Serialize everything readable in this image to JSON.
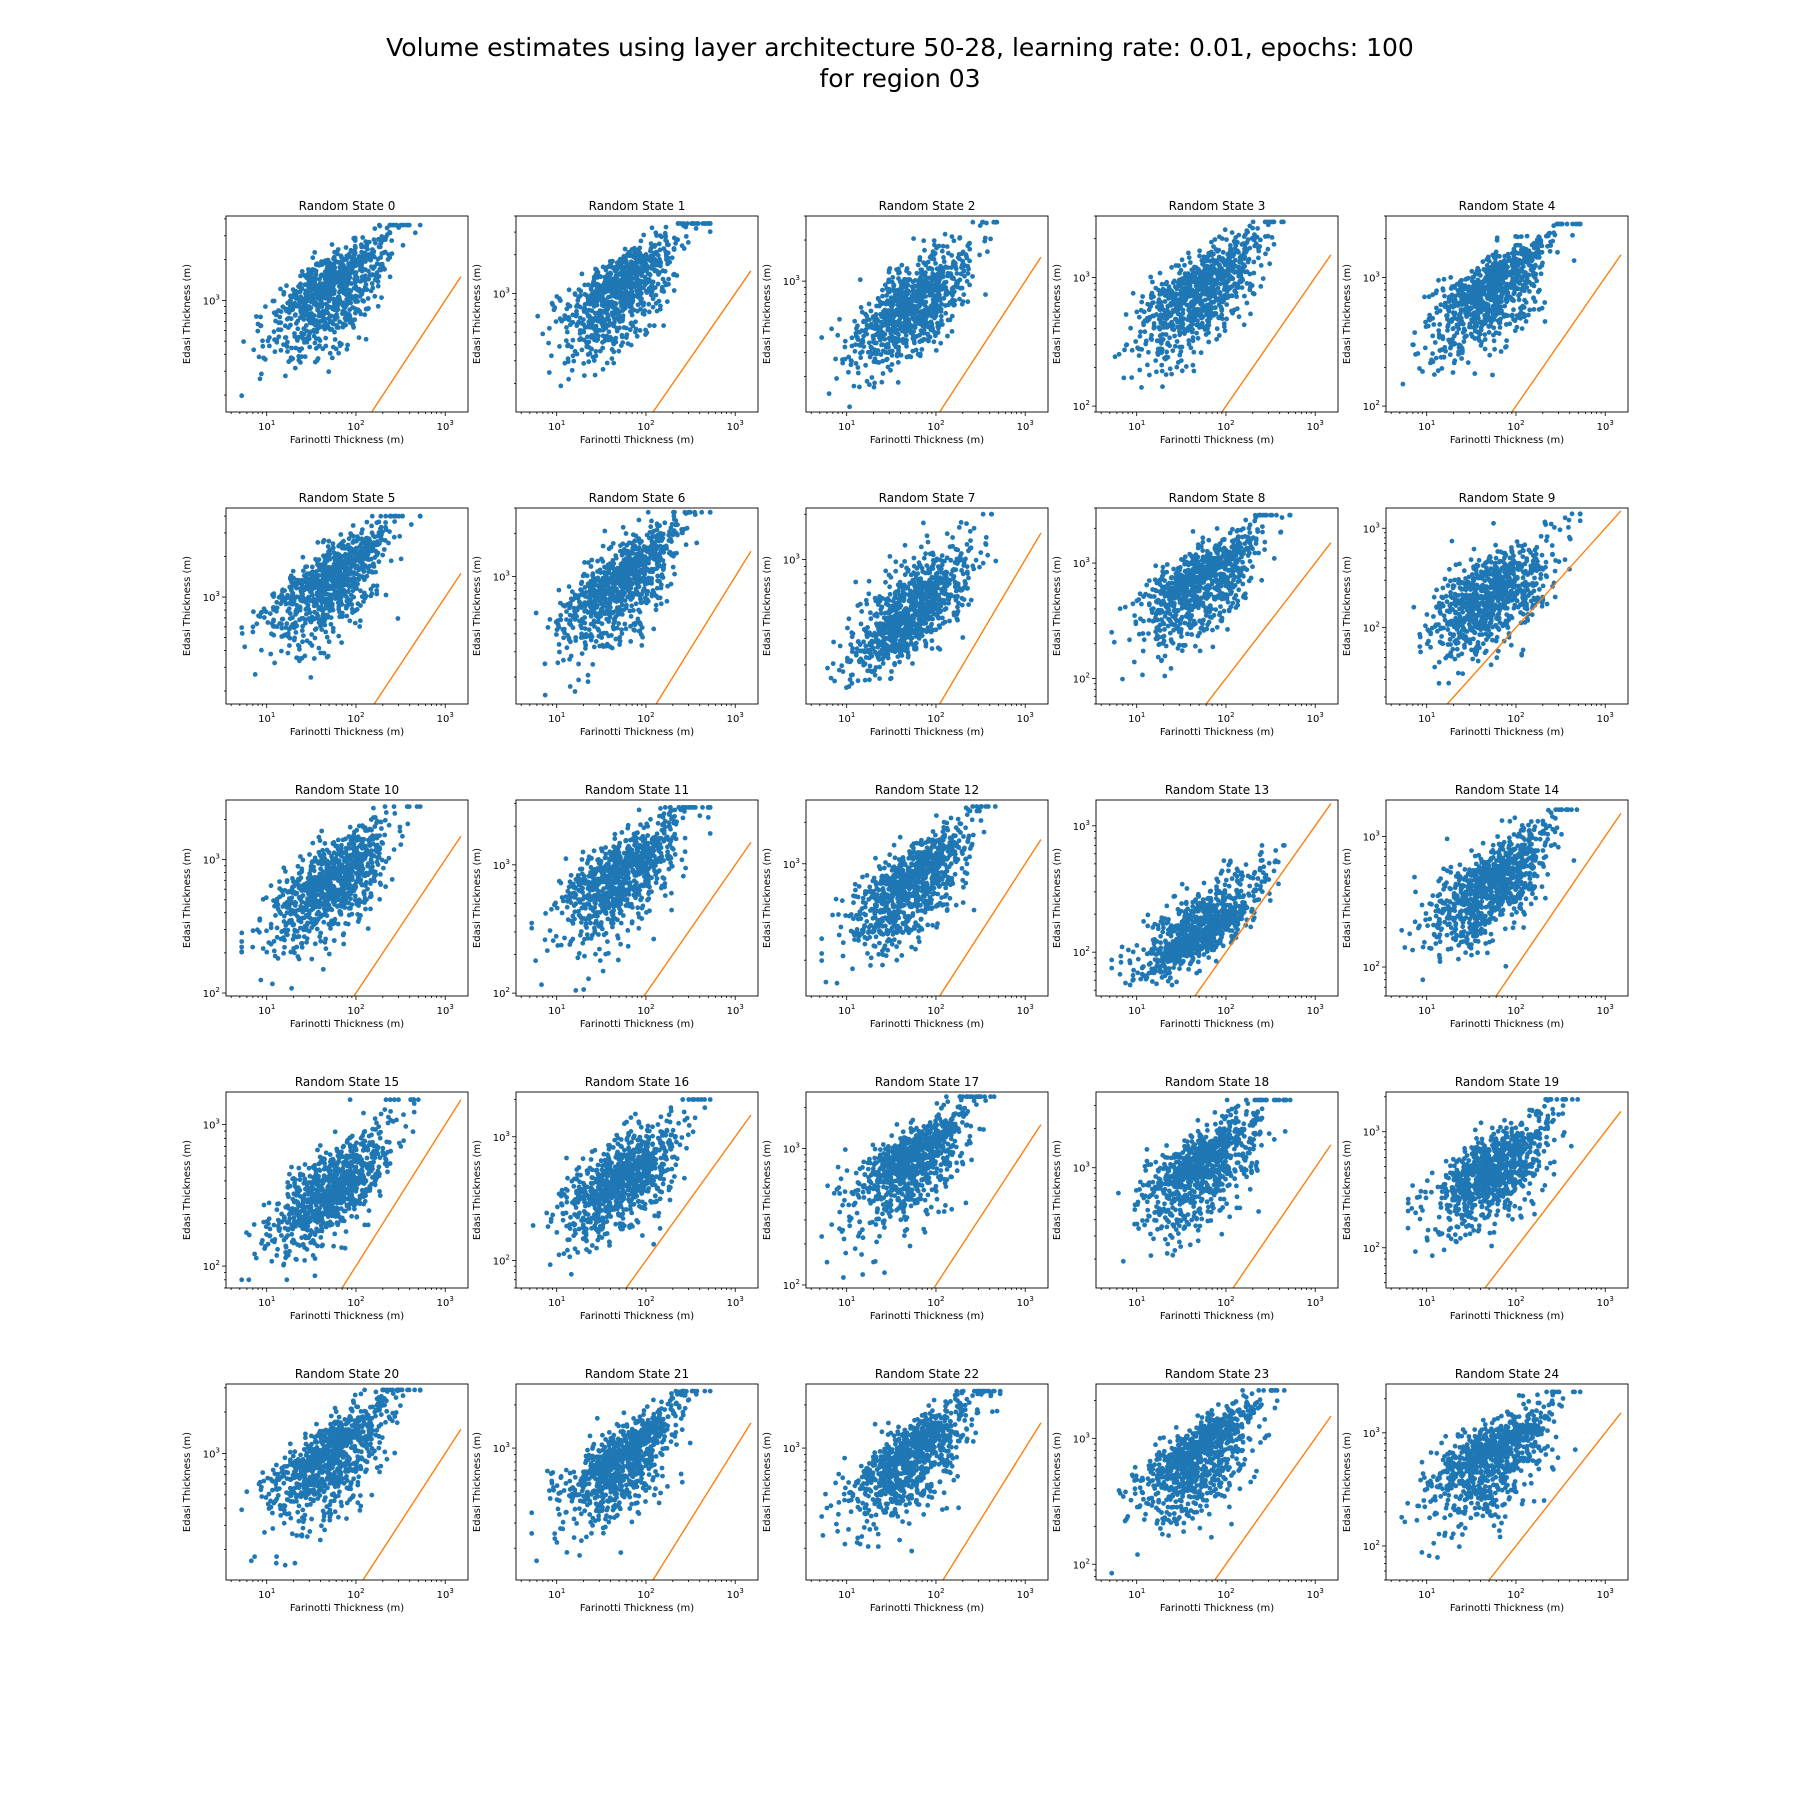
{
  "figure": {
    "title_line1": "Volume estimates using layer architecture 50-28, learning rate: 0.01, epochs: 100",
    "title_line2": "for region 03"
  },
  "colors": {
    "scatter": "#1f77b4",
    "reference_line": "#ff7f0e",
    "axes": "#000000",
    "background": "#ffffff"
  },
  "chart_data": [
    {
      "type": "scatter",
      "title": "Random State 0",
      "xlabel": "Farinotti Thickness (m)",
      "ylabel": "Edasi Thickness (m)",
      "x_scale": "log",
      "y_scale": "log",
      "xlim": [
        3.5,
        1800
      ],
      "ylim": [
        150,
        4200
      ],
      "x_ticks": [
        "10^1",
        "10^2",
        "10^3"
      ],
      "y_ticks": [
        "10^3"
      ],
      "cloud": {
        "y_center": 1300,
        "y_top": 3600,
        "y_bottom": 170
      },
      "reference_line": "y = x"
    },
    {
      "type": "scatter",
      "title": "Random State 1",
      "xlabel": "Farinotti Thickness (m)",
      "ylabel": "Edasi Thickness (m)",
      "x_scale": "log",
      "y_scale": "log",
      "xlim": [
        3.5,
        1800
      ],
      "ylim": [
        120,
        4000
      ],
      "x_ticks": [
        "10^1",
        "10^2",
        "10^3"
      ],
      "y_ticks": [
        "10^3"
      ],
      "cloud": {
        "y_center": 1150,
        "y_top": 3500,
        "y_bottom": 140
      },
      "reference_line": "y = x"
    },
    {
      "type": "scatter",
      "title": "Random State 2",
      "xlabel": "Farinotti Thickness (m)",
      "ylabel": "Edasi Thickness (m)",
      "x_scale": "log",
      "y_scale": "log",
      "xlim": [
        3.5,
        1800
      ],
      "ylim": [
        110,
        3000
      ],
      "x_ticks": [
        "10^1",
        "10^2",
        "10^3"
      ],
      "y_ticks": [
        "10^3"
      ],
      "cloud": {
        "y_center": 650,
        "y_top": 2700,
        "y_bottom": 120
      },
      "reference_line": "y = x"
    },
    {
      "type": "scatter",
      "title": "Random State 3",
      "xlabel": "Farinotti Thickness (m)",
      "ylabel": "Edasi Thickness (m)",
      "x_scale": "log",
      "y_scale": "log",
      "xlim": [
        3.5,
        1800
      ],
      "ylim": [
        90,
        3000
      ],
      "x_ticks": [
        "10^1",
        "10^2",
        "10^3"
      ],
      "y_ticks": [
        "10^2",
        "10^3"
      ],
      "cloud": {
        "y_center": 850,
        "y_top": 2700,
        "y_bottom": 100
      },
      "reference_line": "y = x"
    },
    {
      "type": "scatter",
      "title": "Random State 4",
      "xlabel": "Farinotti Thickness (m)",
      "ylabel": "Edasi Thickness (m)",
      "x_scale": "log",
      "y_scale": "log",
      "xlim": [
        3.5,
        1800
      ],
      "ylim": [
        90,
        3000
      ],
      "x_ticks": [
        "10^1",
        "10^2",
        "10^3"
      ],
      "y_ticks": [
        "10^2",
        "10^3"
      ],
      "cloud": {
        "y_center": 850,
        "y_top": 2600,
        "y_bottom": 100
      },
      "reference_line": "y = x"
    },
    {
      "type": "scatter",
      "title": "Random State 5",
      "xlabel": "Farinotti Thickness (m)",
      "ylabel": "Edasi Thickness (m)",
      "x_scale": "log",
      "y_scale": "log",
      "xlim": [
        3.5,
        1800
      ],
      "ylim": [
        160,
        4600
      ],
      "x_ticks": [
        "10^1",
        "10^2",
        "10^3"
      ],
      "y_ticks": [
        "10^3"
      ],
      "cloud": {
        "y_center": 1400,
        "y_top": 4000,
        "y_bottom": 180
      },
      "reference_line": "y = x"
    },
    {
      "type": "scatter",
      "title": "Random State 6",
      "xlabel": "Farinotti Thickness (m)",
      "ylabel": "Edasi Thickness (m)",
      "x_scale": "log",
      "y_scale": "log",
      "xlim": [
        3.5,
        1800
      ],
      "ylim": [
        130,
        3000
      ],
      "x_ticks": [
        "10^1",
        "10^2",
        "10^3"
      ],
      "y_ticks": [
        "10^3"
      ],
      "cloud": {
        "y_center": 950,
        "y_top": 2800,
        "y_bottom": 150
      },
      "reference_line": "y = x"
    },
    {
      "type": "scatter",
      "title": "Random State 7",
      "xlabel": "Farinotti Thickness (m)",
      "ylabel": "Edasi Thickness (m)",
      "x_scale": "log",
      "y_scale": "log",
      "xlim": [
        3.5,
        1800
      ],
      "ylim": [
        110,
        2200
      ],
      "x_ticks": [
        "10^1",
        "10^2",
        "10^3"
      ],
      "y_ticks": [
        "10^3"
      ],
      "cloud": {
        "y_center": 450,
        "y_top": 2000,
        "y_bottom": 120
      },
      "reference_line": "y = x"
    },
    {
      "type": "scatter",
      "title": "Random State 8",
      "xlabel": "Farinotti Thickness (m)",
      "ylabel": "Edasi Thickness (m)",
      "x_scale": "log",
      "y_scale": "log",
      "xlim": [
        3.5,
        1800
      ],
      "ylim": [
        60,
        3000
      ],
      "x_ticks": [
        "10^1",
        "10^2",
        "10^3"
      ],
      "y_ticks": [
        "10^2",
        "10^3"
      ],
      "cloud": {
        "y_center": 750,
        "y_top": 2600,
        "y_bottom": 70
      },
      "reference_line": "y = x"
    },
    {
      "type": "scatter",
      "title": "Random State 9",
      "xlabel": "Farinotti Thickness (m)",
      "ylabel": "Edasi Thickness (m)",
      "x_scale": "log",
      "y_scale": "log",
      "xlim": [
        3.5,
        1800
      ],
      "ylim": [
        17,
        1600
      ],
      "x_ticks": [
        "10^1",
        "10^2",
        "10^3"
      ],
      "y_ticks": [
        "10^2",
        "10^3"
      ],
      "cloud": {
        "y_center": 200,
        "y_top": 1400,
        "y_bottom": 20
      },
      "reference_line": "y = x"
    },
    {
      "type": "scatter",
      "title": "Random State 10",
      "xlabel": "Farinotti Thickness (m)",
      "ylabel": "Edasi Thickness (m)",
      "x_scale": "log",
      "y_scale": "log",
      "xlim": [
        3.5,
        1800
      ],
      "ylim": [
        95,
        2800
      ],
      "x_ticks": [
        "10^1",
        "10^2",
        "10^3"
      ],
      "y_ticks": [
        "10^2",
        "10^3"
      ],
      "cloud": {
        "y_center": 700,
        "y_top": 2500,
        "y_bottom": 105
      },
      "reference_line": "y = x"
    },
    {
      "type": "scatter",
      "title": "Random State 11",
      "xlabel": "Farinotti Thickness (m)",
      "ylabel": "Edasi Thickness (m)",
      "x_scale": "log",
      "y_scale": "log",
      "xlim": [
        3.5,
        1800
      ],
      "ylim": [
        95,
        3200
      ],
      "x_ticks": [
        "10^1",
        "10^2",
        "10^3"
      ],
      "y_ticks": [
        "10^2",
        "10^3"
      ],
      "cloud": {
        "y_center": 900,
        "y_top": 2800,
        "y_bottom": 105
      },
      "reference_line": "y = x"
    },
    {
      "type": "scatter",
      "title": "Random State 12",
      "xlabel": "Farinotti Thickness (m)",
      "ylabel": "Edasi Thickness (m)",
      "x_scale": "log",
      "y_scale": "log",
      "xlim": [
        3.5,
        1800
      ],
      "ylim": [
        110,
        2900
      ],
      "x_ticks": [
        "10^1",
        "10^2",
        "10^3"
      ],
      "y_ticks": [
        "10^3"
      ],
      "cloud": {
        "y_center": 750,
        "y_top": 2600,
        "y_bottom": 120
      },
      "reference_line": "y = x"
    },
    {
      "type": "scatter",
      "title": "Random State 13",
      "xlabel": "Farinotti Thickness (m)",
      "ylabel": "Edasi Thickness (m)",
      "x_scale": "log",
      "y_scale": "log",
      "xlim": [
        3.5,
        1800
      ],
      "ylim": [
        45,
        1600
      ],
      "x_ticks": [
        "10^1",
        "10^2",
        "10^3"
      ],
      "y_ticks": [
        "10^2",
        "10^3"
      ],
      "cloud": {
        "y_center": 150,
        "y_top": 700,
        "y_bottom": 55
      },
      "reference_line": "y = x"
    },
    {
      "type": "scatter",
      "title": "Random State 14",
      "xlabel": "Farinotti Thickness (m)",
      "ylabel": "Edasi Thickness (m)",
      "x_scale": "log",
      "y_scale": "log",
      "xlim": [
        3.5,
        1800
      ],
      "ylim": [
        60,
        1900
      ],
      "x_ticks": [
        "10^1",
        "10^2",
        "10^3"
      ],
      "y_ticks": [
        "10^2",
        "10^3"
      ],
      "cloud": {
        "y_center": 450,
        "y_top": 1600,
        "y_bottom": 70
      },
      "reference_line": "y = x"
    },
    {
      "type": "scatter",
      "title": "Random State 15",
      "xlabel": "Farinotti Thickness (m)",
      "ylabel": "Edasi Thickness (m)",
      "x_scale": "log",
      "y_scale": "log",
      "xlim": [
        3.5,
        1800
      ],
      "ylim": [
        70,
        1700
      ],
      "x_ticks": [
        "10^1",
        "10^2",
        "10^3"
      ],
      "y_ticks": [
        "10^2",
        "10^3"
      ],
      "cloud": {
        "y_center": 350,
        "y_top": 1500,
        "y_bottom": 80
      },
      "reference_line": "y = x"
    },
    {
      "type": "scatter",
      "title": "Random State 16",
      "xlabel": "Farinotti Thickness (m)",
      "ylabel": "Edasi Thickness (m)",
      "x_scale": "log",
      "y_scale": "log",
      "xlim": [
        3.5,
        1800
      ],
      "ylim": [
        60,
        2300
      ],
      "x_ticks": [
        "10^1",
        "10^2",
        "10^3"
      ],
      "y_ticks": [
        "10^2",
        "10^3"
      ],
      "cloud": {
        "y_center": 450,
        "y_top": 2000,
        "y_bottom": 70
      },
      "reference_line": "y = x"
    },
    {
      "type": "scatter",
      "title": "Random State 17",
      "xlabel": "Farinotti Thickness (m)",
      "ylabel": "Edasi Thickness (m)",
      "x_scale": "log",
      "y_scale": "log",
      "xlim": [
        3.5,
        1800
      ],
      "ylim": [
        95,
        2600
      ],
      "x_ticks": [
        "10^1",
        "10^2",
        "10^3"
      ],
      "y_ticks": [
        "10^2",
        "10^3"
      ],
      "cloud": {
        "y_center": 850,
        "y_top": 2400,
        "y_bottom": 105
      },
      "reference_line": "y = x"
    },
    {
      "type": "scatter",
      "title": "Random State 18",
      "xlabel": "Farinotti Thickness (m)",
      "ylabel": "Edasi Thickness (m)",
      "x_scale": "log",
      "y_scale": "log",
      "xlim": [
        3.5,
        1800
      ],
      "ylim": [
        120,
        3800
      ],
      "x_ticks": [
        "10^1",
        "10^2",
        "10^3"
      ],
      "y_ticks": [
        "10^3"
      ],
      "cloud": {
        "y_center": 1100,
        "y_top": 3300,
        "y_bottom": 140
      },
      "reference_line": "y = x"
    },
    {
      "type": "scatter",
      "title": "Random State 19",
      "xlabel": "Farinotti Thickness (m)",
      "ylabel": "Edasi Thickness (m)",
      "x_scale": "log",
      "y_scale": "log",
      "xlim": [
        3.5,
        1800
      ],
      "ylim": [
        45,
        2200
      ],
      "x_ticks": [
        "10^1",
        "10^2",
        "10^3"
      ],
      "y_ticks": [
        "10^2",
        "10^3"
      ],
      "cloud": {
        "y_center": 500,
        "y_top": 1900,
        "y_bottom": 55
      },
      "reference_line": "y = x"
    },
    {
      "type": "scatter",
      "title": "Random State 20",
      "xlabel": "Farinotti Thickness (m)",
      "ylabel": "Edasi Thickness (m)",
      "x_scale": "log",
      "y_scale": "log",
      "xlim": [
        3.5,
        1800
      ],
      "ylim": [
        120,
        3200
      ],
      "x_ticks": [
        "10^1",
        "10^2",
        "10^3"
      ],
      "y_ticks": [
        "10^3"
      ],
      "cloud": {
        "y_center": 1000,
        "y_top": 2900,
        "y_bottom": 130
      },
      "reference_line": "y = x"
    },
    {
      "type": "scatter",
      "title": "Random State 21",
      "xlabel": "Farinotti Thickness (m)",
      "ylabel": "Edasi Thickness (m)",
      "x_scale": "log",
      "y_scale": "log",
      "xlim": [
        3.5,
        1800
      ],
      "ylim": [
        120,
        2800
      ],
      "x_ticks": [
        "10^1",
        "10^2",
        "10^3"
      ],
      "y_ticks": [
        "10^3"
      ],
      "cloud": {
        "y_center": 850,
        "y_top": 2500,
        "y_bottom": 130
      },
      "reference_line": "y = x"
    },
    {
      "type": "scatter",
      "title": "Random State 22",
      "xlabel": "Farinotti Thickness (m)",
      "ylabel": "Edasi Thickness (m)",
      "x_scale": "log",
      "y_scale": "log",
      "xlim": [
        3.5,
        1800
      ],
      "ylim": [
        120,
        2800
      ],
      "x_ticks": [
        "10^1",
        "10^2",
        "10^3"
      ],
      "y_ticks": [
        "10^3"
      ],
      "cloud": {
        "y_center": 900,
        "y_top": 2500,
        "y_bottom": 130
      },
      "reference_line": "y = x"
    },
    {
      "type": "scatter",
      "title": "Random State 23",
      "xlabel": "Farinotti Thickness (m)",
      "ylabel": "Edasi Thickness (m)",
      "x_scale": "log",
      "y_scale": "log",
      "xlim": [
        3.5,
        1800
      ],
      "ylim": [
        75,
        2700
      ],
      "x_ticks": [
        "10^1",
        "10^2",
        "10^3"
      ],
      "y_ticks": [
        "10^2",
        "10^3"
      ],
      "cloud": {
        "y_center": 800,
        "y_top": 2400,
        "y_bottom": 85
      },
      "reference_line": "y = x"
    },
    {
      "type": "scatter",
      "title": "Random State 24",
      "xlabel": "Farinotti Thickness (m)",
      "ylabel": "Edasi Thickness (m)",
      "x_scale": "log",
      "y_scale": "log",
      "xlim": [
        3.5,
        1800
      ],
      "ylim": [
        50,
        2700
      ],
      "x_ticks": [
        "10^1",
        "10^2",
        "10^3"
      ],
      "y_ticks": [
        "10^2",
        "10^3"
      ],
      "cloud": {
        "y_center": 650,
        "y_top": 2300,
        "y_bottom": 60
      },
      "reference_line": "y = x"
    }
  ]
}
